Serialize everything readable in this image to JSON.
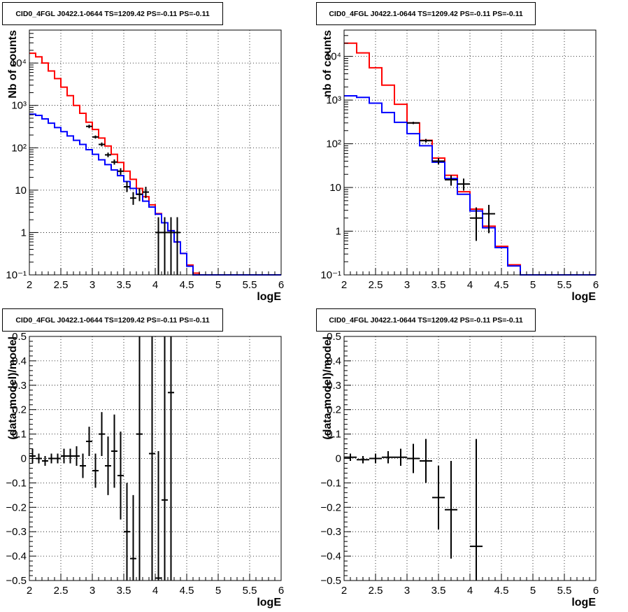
{
  "chart_data": [
    {
      "type": "line",
      "title": "CID0_4FGL J0422.1-0644 TS=1209.42 PS=-0.11 PS=-0.11",
      "xlabel": "logE",
      "ylabel": "Nb of counts",
      "log_y": true,
      "xlim": [
        2,
        6
      ],
      "ylim": [
        0.1,
        60000
      ],
      "grid": true,
      "x_ticks": [
        "2",
        "2.5",
        "3",
        "3.5",
        "4",
        "4.5",
        "5",
        "5.5",
        "6"
      ],
      "y_ticks": [
        {
          "value": 0.1,
          "label": "10⁻¹"
        },
        {
          "value": 1,
          "label": "1"
        },
        {
          "value": 10,
          "label": "10"
        },
        {
          "value": 100,
          "label": "10²"
        },
        {
          "value": 1000,
          "label": "10³"
        },
        {
          "value": 10000,
          "label": "10⁴"
        }
      ],
      "bin_edges": [
        2.0,
        2.1,
        2.2,
        2.3,
        2.4,
        2.5,
        2.6,
        2.7,
        2.8,
        2.9,
        3.0,
        3.1,
        3.2,
        3.3,
        3.4,
        3.5,
        3.6,
        3.7,
        3.8,
        3.9,
        4.0,
        4.1,
        4.2,
        4.3,
        4.4,
        4.5,
        4.6,
        4.7,
        4.8,
        4.9,
        5.0,
        5.1,
        5.2,
        5.3,
        5.4,
        5.5,
        5.6,
        5.7,
        5.8,
        5.9,
        6.0
      ],
      "series": [
        {
          "color": "#ff0000",
          "values": [
            17000,
            14000,
            10000,
            6500,
            4300,
            2700,
            1700,
            1000,
            650,
            400,
            270,
            170,
            110,
            70,
            45,
            28,
            18,
            11,
            7,
            4.5,
            2.8,
            1.7,
            1.1,
            0.6,
            0.32,
            0.17,
            0.11,
            0.1,
            0.1,
            0.1,
            0.1,
            0.1,
            0.1,
            0.1,
            0.1,
            0.1,
            0.1,
            0.1,
            0.1,
            0.1
          ]
        },
        {
          "color": "#0000ff",
          "values": [
            620,
            580,
            480,
            380,
            300,
            240,
            190,
            150,
            120,
            90,
            70,
            52,
            40,
            30,
            22,
            16,
            11,
            8,
            5.5,
            4,
            2.7,
            1.7,
            1.1,
            0.6,
            0.32,
            0.16,
            0.1,
            0.1,
            0.1,
            0.1,
            0.1,
            0.1,
            0.1,
            0.1,
            0.1,
            0.1,
            0.1,
            0.1,
            0.1,
            0.1
          ]
        }
      ],
      "points": [
        {
          "x": 2.95,
          "y": 320,
          "ylo": 290,
          "yhi": 350,
          "xerr": 0.05
        },
        {
          "x": 3.05,
          "y": 180,
          "ylo": 165,
          "yhi": 195,
          "xerr": 0.05
        },
        {
          "x": 3.15,
          "y": 120,
          "ylo": 108,
          "yhi": 133,
          "xerr": 0.05
        },
        {
          "x": 3.25,
          "y": 68,
          "ylo": 60,
          "yhi": 77,
          "xerr": 0.05
        },
        {
          "x": 3.35,
          "y": 46,
          "ylo": 40,
          "yhi": 53,
          "xerr": 0.05
        },
        {
          "x": 3.45,
          "y": 28,
          "ylo": 23,
          "yhi": 33,
          "xerr": 0.05
        },
        {
          "x": 3.55,
          "y": 12,
          "ylo": 9,
          "yhi": 16,
          "xerr": 0.05
        },
        {
          "x": 3.65,
          "y": 6.5,
          "ylo": 4.5,
          "yhi": 9,
          "xerr": 0.05
        },
        {
          "x": 3.75,
          "y": 8,
          "ylo": 5.5,
          "yhi": 11,
          "xerr": 0.05
        },
        {
          "x": 3.85,
          "y": 9,
          "ylo": 6.5,
          "yhi": 12,
          "xerr": 0.05
        },
        {
          "x": 4.05,
          "y": 1,
          "ylo": 0.1,
          "yhi": 2.3,
          "xerr": 0.05
        },
        {
          "x": 4.15,
          "y": 1,
          "ylo": 0.1,
          "yhi": 2.3,
          "xerr": 0.05
        },
        {
          "x": 4.25,
          "y": 1,
          "ylo": 0.1,
          "yhi": 2.3,
          "xerr": 0.05
        },
        {
          "x": 4.35,
          "y": 1,
          "ylo": 0.1,
          "yhi": 2.3,
          "xerr": 0.05
        }
      ]
    },
    {
      "type": "line",
      "title": "CID0_4FGL J0422.1-0644 TS=1209.42 PS=-0.11 PS=-0.11",
      "xlabel": "logE",
      "ylabel": "nb of counts",
      "log_y": true,
      "xlim": [
        2,
        6
      ],
      "ylim": [
        0.1,
        40000
      ],
      "grid": true,
      "x_ticks": [
        "2",
        "2.5",
        "3",
        "3.5",
        "4",
        "4.5",
        "5",
        "5.5",
        "6"
      ],
      "y_ticks": [
        {
          "value": 0.1,
          "label": "10⁻¹"
        },
        {
          "value": 1,
          "label": "1"
        },
        {
          "value": 10,
          "label": "10"
        },
        {
          "value": 100,
          "label": "10²"
        },
        {
          "value": 1000,
          "label": "10³"
        },
        {
          "value": 10000,
          "label": "10⁴"
        }
      ],
      "bin_edges": [
        2.0,
        2.2,
        2.4,
        2.6,
        2.8,
        3.0,
        3.2,
        3.4,
        3.6,
        3.8,
        4.0,
        4.2,
        4.4,
        4.6,
        4.8,
        5.0,
        5.2,
        5.4,
        5.6,
        5.8,
        6.0
      ],
      "series": [
        {
          "color": "#ff0000",
          "values": [
            20000,
            12000,
            5500,
            2200,
            800,
            300,
            120,
            47,
            19,
            8,
            3.2,
            1.3,
            0.45,
            0.17,
            0.1,
            0.1,
            0.1,
            0.1,
            0.1,
            0.1
          ]
        },
        {
          "color": "#0000ff",
          "values": [
            1250,
            1150,
            850,
            520,
            310,
            170,
            90,
            38,
            16,
            7,
            2.9,
            1.2,
            0.42,
            0.16,
            0.1,
            0.1,
            0.1,
            0.1,
            0.1,
            0.1
          ]
        }
      ],
      "points": [
        {
          "x": 3.1,
          "y": 300,
          "ylo": 282,
          "yhi": 318,
          "xerr": 0.1
        },
        {
          "x": 3.3,
          "y": 118,
          "ylo": 107,
          "yhi": 129,
          "xerr": 0.1
        },
        {
          "x": 3.5,
          "y": 40,
          "ylo": 34,
          "yhi": 47,
          "xerr": 0.1
        },
        {
          "x": 3.7,
          "y": 15,
          "ylo": 11,
          "yhi": 19,
          "xerr": 0.1
        },
        {
          "x": 3.9,
          "y": 12,
          "ylo": 8.5,
          "yhi": 16,
          "xerr": 0.1
        },
        {
          "x": 4.1,
          "y": 2,
          "ylo": 0.6,
          "yhi": 3.5,
          "xerr": 0.1
        },
        {
          "x": 4.3,
          "y": 2.5,
          "ylo": 0.9,
          "yhi": 4,
          "xerr": 0.1
        }
      ]
    },
    {
      "type": "scatter",
      "title": "CID0_4FGL J0422.1-0644 TS=1209.42 PS=-0.11 PS=-0.11",
      "xlabel": "logE",
      "ylabel": "(data-model)/model",
      "log_y": false,
      "xlim": [
        2,
        6
      ],
      "ylim": [
        -0.5,
        0.5
      ],
      "grid": true,
      "x_ticks": [
        "2",
        "2.5",
        "3",
        "3.5",
        "4",
        "4.5",
        "5",
        "5.5",
        "6"
      ],
      "y_ticks": [
        {
          "value": -0.5,
          "label": "−0.5"
        },
        {
          "value": -0.4,
          "label": "−0.4"
        },
        {
          "value": -0.3,
          "label": "−0.3"
        },
        {
          "value": -0.2,
          "label": "−0.2"
        },
        {
          "value": -0.1,
          "label": "−0.1"
        },
        {
          "value": 0,
          "label": "0"
        },
        {
          "value": 0.1,
          "label": "0.1"
        },
        {
          "value": 0.2,
          "label": "0.2"
        },
        {
          "value": 0.3,
          "label": "0.3"
        },
        {
          "value": 0.4,
          "label": "0.4"
        },
        {
          "value": 0.5,
          "label": "0.5"
        }
      ],
      "series": [],
      "points": [
        {
          "x": 2.05,
          "y": 0.01,
          "ylo": -0.02,
          "yhi": 0.04,
          "xerr": 0.05
        },
        {
          "x": 2.15,
          "y": 0.0,
          "ylo": -0.02,
          "yhi": 0.02,
          "xerr": 0.05
        },
        {
          "x": 2.25,
          "y": -0.01,
          "ylo": -0.03,
          "yhi": 0.01,
          "xerr": 0.05
        },
        {
          "x": 2.35,
          "y": 0.0,
          "ylo": -0.02,
          "yhi": 0.02,
          "xerr": 0.05
        },
        {
          "x": 2.45,
          "y": 0.0,
          "ylo": -0.02,
          "yhi": 0.02,
          "xerr": 0.05
        },
        {
          "x": 2.55,
          "y": 0.01,
          "ylo": -0.02,
          "yhi": 0.04,
          "xerr": 0.05
        },
        {
          "x": 2.65,
          "y": 0.01,
          "ylo": -0.02,
          "yhi": 0.04,
          "xerr": 0.05
        },
        {
          "x": 2.75,
          "y": 0.01,
          "ylo": -0.03,
          "yhi": 0.05,
          "xerr": 0.05
        },
        {
          "x": 2.85,
          "y": -0.03,
          "ylo": -0.08,
          "yhi": 0.02,
          "xerr": 0.05
        },
        {
          "x": 2.95,
          "y": 0.07,
          "ylo": 0.01,
          "yhi": 0.13,
          "xerr": 0.05
        },
        {
          "x": 3.05,
          "y": -0.05,
          "ylo": -0.12,
          "yhi": 0.02,
          "xerr": 0.05
        },
        {
          "x": 3.15,
          "y": 0.1,
          "ylo": 0.01,
          "yhi": 0.19,
          "xerr": 0.05
        },
        {
          "x": 3.25,
          "y": -0.03,
          "ylo": -0.15,
          "yhi": 0.09,
          "xerr": 0.05
        },
        {
          "x": 3.35,
          "y": 0.03,
          "ylo": -0.12,
          "yhi": 0.18,
          "xerr": 0.05
        },
        {
          "x": 3.45,
          "y": -0.07,
          "ylo": -0.25,
          "yhi": 0.11,
          "xerr": 0.05
        },
        {
          "x": 3.55,
          "y": -0.3,
          "ylo": -0.5,
          "yhi": -0.1,
          "xerr": 0.05
        },
        {
          "x": 3.65,
          "y": -0.41,
          "ylo": -0.5,
          "yhi": -0.15,
          "xerr": 0.05
        },
        {
          "x": 3.75,
          "y": 0.1,
          "ylo": -0.5,
          "yhi": 0.5,
          "xerr": 0.05
        },
        {
          "x": 3.95,
          "y": 0.02,
          "ylo": -0.5,
          "yhi": 0.5,
          "xerr": 0.05
        },
        {
          "x": 4.05,
          "y": -0.49,
          "ylo": -0.5,
          "yhi": 0.03,
          "xerr": 0.05
        },
        {
          "x": 4.15,
          "y": -0.17,
          "ylo": -0.5,
          "yhi": 0.5,
          "xerr": 0.05
        },
        {
          "x": 4.25,
          "y": 0.27,
          "ylo": -0.5,
          "yhi": 0.5,
          "xerr": 0.05
        }
      ]
    },
    {
      "type": "scatter",
      "title": "CID0_4FGL J0422.1-0644 TS=1209.42 PS=-0.11 PS=-0.11",
      "xlabel": "logE",
      "ylabel": "(data-model)/model",
      "log_y": false,
      "xlim": [
        2,
        6
      ],
      "ylim": [
        -0.5,
        0.5
      ],
      "grid": true,
      "x_ticks": [
        "2",
        "2.5",
        "3",
        "3.5",
        "4",
        "4.5",
        "5",
        "5.5",
        "6"
      ],
      "y_ticks": [
        {
          "value": -0.5,
          "label": "−0.5"
        },
        {
          "value": -0.4,
          "label": "−0.4"
        },
        {
          "value": -0.3,
          "label": "−0.3"
        },
        {
          "value": -0.2,
          "label": "−0.2"
        },
        {
          "value": -0.1,
          "label": "−0.1"
        },
        {
          "value": 0,
          "label": "0"
        },
        {
          "value": 0.1,
          "label": "0.1"
        },
        {
          "value": 0.2,
          "label": "0.2"
        },
        {
          "value": 0.3,
          "label": "0.3"
        },
        {
          "value": 0.4,
          "label": "0.4"
        },
        {
          "value": 0.5,
          "label": "0.5"
        }
      ],
      "series": [],
      "points": [
        {
          "x": 2.1,
          "y": 0.005,
          "ylo": -0.01,
          "yhi": 0.02,
          "xerr": 0.1
        },
        {
          "x": 2.3,
          "y": -0.005,
          "ylo": -0.02,
          "yhi": 0.01,
          "xerr": 0.1
        },
        {
          "x": 2.5,
          "y": 0.0,
          "ylo": -0.02,
          "yhi": 0.02,
          "xerr": 0.1
        },
        {
          "x": 2.7,
          "y": 0.005,
          "ylo": -0.02,
          "yhi": 0.03,
          "xerr": 0.1
        },
        {
          "x": 2.9,
          "y": 0.005,
          "ylo": -0.03,
          "yhi": 0.04,
          "xerr": 0.1
        },
        {
          "x": 3.1,
          "y": 0.0,
          "ylo": -0.06,
          "yhi": 0.06,
          "xerr": 0.1
        },
        {
          "x": 3.3,
          "y": -0.01,
          "ylo": -0.1,
          "yhi": 0.08,
          "xerr": 0.1
        },
        {
          "x": 3.5,
          "y": -0.16,
          "ylo": -0.29,
          "yhi": -0.03,
          "xerr": 0.1
        },
        {
          "x": 3.7,
          "y": -0.21,
          "ylo": -0.41,
          "yhi": -0.01,
          "xerr": 0.1
        },
        {
          "x": 4.1,
          "y": -0.36,
          "ylo": -0.5,
          "yhi": 0.08,
          "xerr": 0.1
        }
      ]
    }
  ]
}
